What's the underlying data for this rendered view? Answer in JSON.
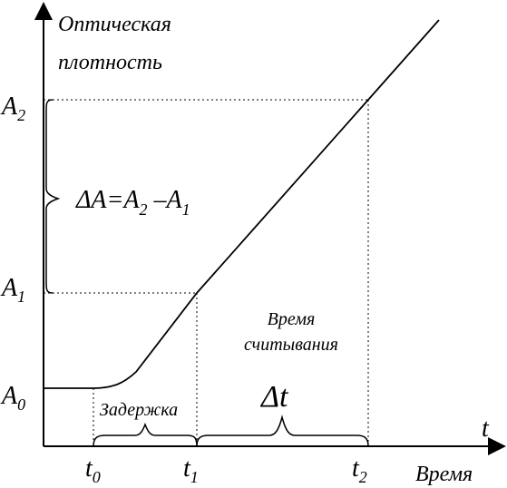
{
  "chart_data": {
    "type": "line",
    "title": "",
    "ylabel_line1": "Оптическая",
    "ylabel_line2": "плотность",
    "xlabel_symbol": "t",
    "xlabel": "Время",
    "x_ticks": [
      {
        "base": "t",
        "sub": "0"
      },
      {
        "base": "t",
        "sub": "1"
      },
      {
        "base": "t",
        "sub": "2"
      }
    ],
    "y_ticks": [
      {
        "base": "A",
        "sub": "0"
      },
      {
        "base": "A",
        "sub": "1"
      },
      {
        "base": "A",
        "sub": "2"
      }
    ],
    "annotations": {
      "delay": "Задержка",
      "delta_t": "Δt",
      "read_time_line1": "Время",
      "read_time_line2": "считывания",
      "delta_a_parts": [
        "ΔA",
        "=A",
        "2",
        " –A",
        "1"
      ]
    }
  }
}
